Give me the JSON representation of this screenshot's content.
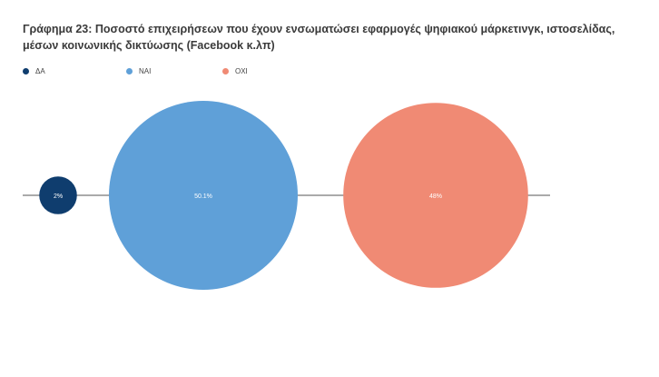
{
  "chart_data": {
    "type": "bubble",
    "title": "Γράφημα 23: Ποσοστό επιχειρήσεων που έχουν ενσωματώσει εφαρμογές ψηφιακού μάρκετινγκ, ιστοσελίδας, μέσων κοινωνικής δικτύωσης (Facebook κ.λπ)",
    "legend_position": "top-left",
    "grid": false,
    "series": [
      {
        "name": "ΔΑ",
        "value": 2,
        "label": "2%",
        "color": "#0f3d6e"
      },
      {
        "name": "ΝΑΙ",
        "value": 50.1,
        "label": "50.1%",
        "color": "#5fa0d8"
      },
      {
        "name": "ΟΧΙ",
        "value": 48,
        "label": "48%",
        "color": "#f08a74"
      }
    ]
  }
}
